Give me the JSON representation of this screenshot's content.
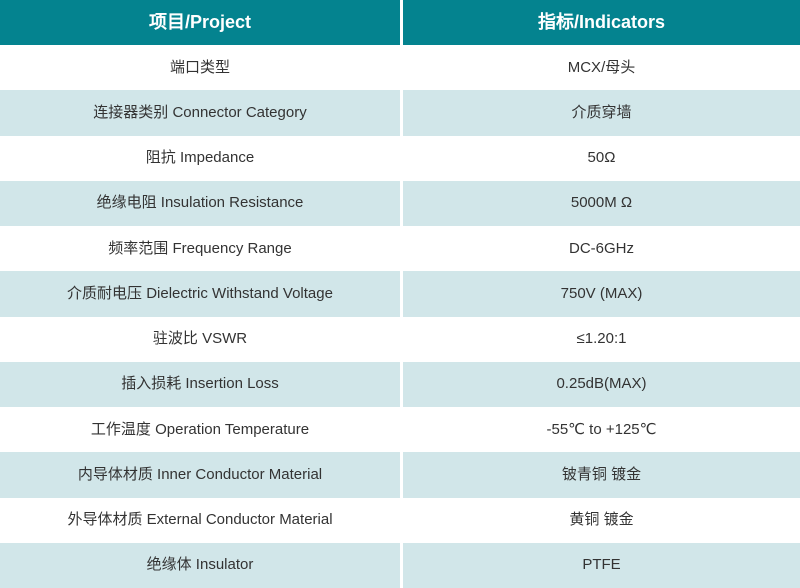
{
  "colors": {
    "header_bg": "#04838F",
    "header_text": "#FFFFFF",
    "row_bg": "#FFFFFF",
    "row_alt_bg": "#D1E6E9",
    "body_text": "#333333",
    "column_divider": "#FFFFFF"
  },
  "table": {
    "columns": [
      {
        "label": "项目/Project"
      },
      {
        "label": "指标/Indicators"
      }
    ],
    "rows": [
      {
        "project": "端口类型",
        "indicator": "MCX/母头"
      },
      {
        "project": "连接器类别 Connector Category",
        "indicator": "介质穿墙"
      },
      {
        "project": "阻抗 Impedance",
        "indicator": "50Ω"
      },
      {
        "project": "绝缘电阻 Insulation Resistance",
        "indicator": "5000M Ω"
      },
      {
        "project": "频率范围 Frequency Range",
        "indicator": "DC-6GHz"
      },
      {
        "project": "介质耐电压 Dielectric Withstand Voltage",
        "indicator": "750V (MAX)"
      },
      {
        "project": "驻波比 VSWR",
        "indicator": "≤1.20:1"
      },
      {
        "project": "插入损耗 Insertion Loss",
        "indicator": "0.25dB(MAX)"
      },
      {
        "project": "工作温度 Operation Temperature",
        "indicator": "-55℃ to +125℃"
      },
      {
        "project": "内导体材质 Inner Conductor Material",
        "indicator": "铍青铜 镀金"
      },
      {
        "project": "外导体材质 External Conductor Material",
        "indicator": "黄铜 镀金"
      },
      {
        "project": "绝缘体 Insulator",
        "indicator": "PTFE"
      }
    ]
  }
}
